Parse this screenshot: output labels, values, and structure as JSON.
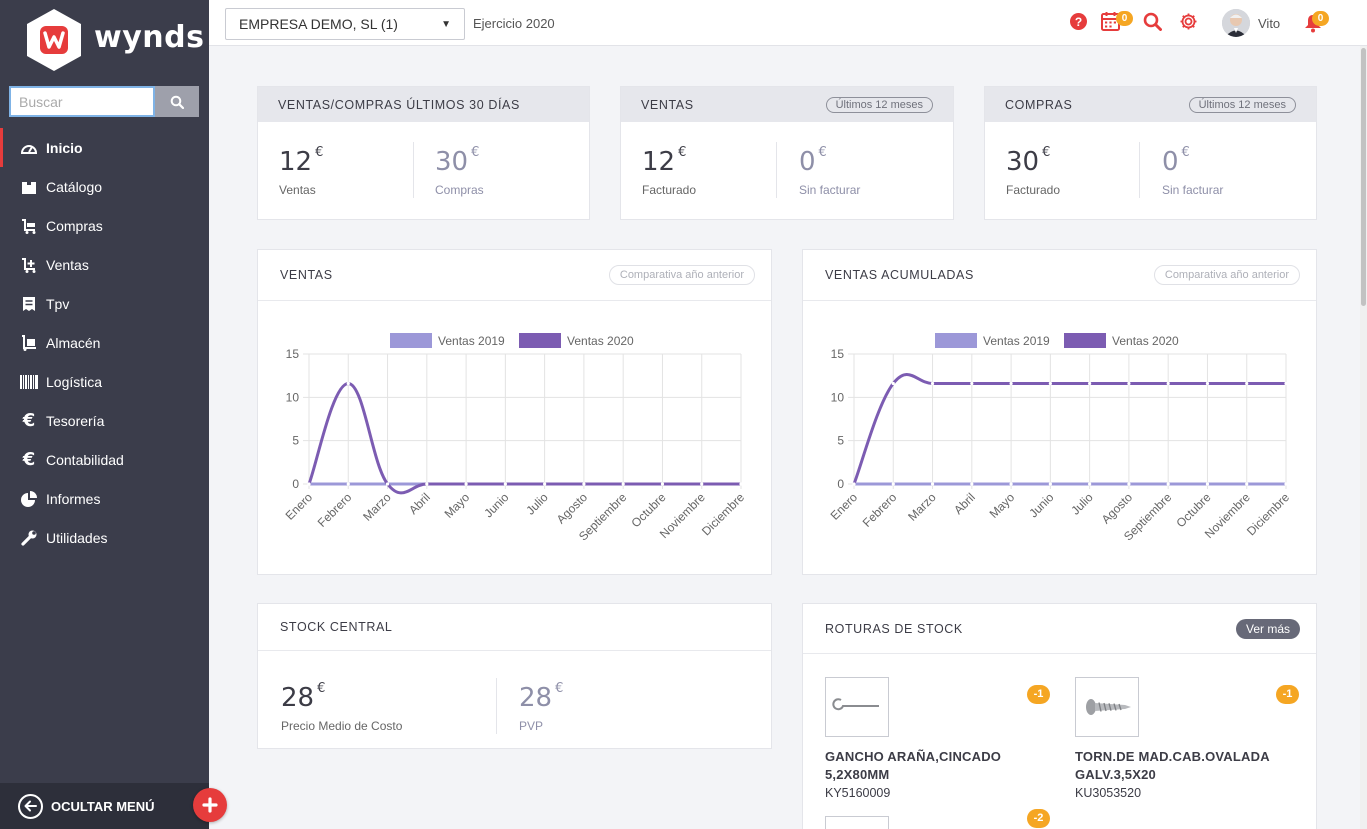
{
  "app": {
    "logo_text": "wynds",
    "brand_color": "#e63c3c"
  },
  "sidebar": {
    "search_placeholder": "Buscar",
    "items": [
      {
        "label": "Inicio",
        "icon": "dashboard-icon",
        "active": true
      },
      {
        "label": "Catálogo",
        "icon": "box-icon"
      },
      {
        "label": "Compras",
        "icon": "cart-icon"
      },
      {
        "label": "Ventas",
        "icon": "cart-plus-icon"
      },
      {
        "label": "Tpv",
        "icon": "receipt-icon"
      },
      {
        "label": "Almacén",
        "icon": "dolly-icon"
      },
      {
        "label": "Logística",
        "icon": "barcode-icon"
      },
      {
        "label": "Tesorería",
        "icon": "euro-icon"
      },
      {
        "label": "Contabilidad",
        "icon": "euro-icon"
      },
      {
        "label": "Informes",
        "icon": "pie-chart-icon"
      },
      {
        "label": "Utilidades",
        "icon": "wrench-icon"
      }
    ],
    "hide_menu_label": "OCULTAR MENÚ"
  },
  "topbar": {
    "company": "EMPRESA DEMO, SL (1)",
    "exercise": "Ejercicio 2020",
    "calendar_count": "0",
    "notifications_count": "0",
    "user_name": "Vito"
  },
  "kpis": {
    "last30": {
      "title": "VENTAS/COMPRAS ÚLTIMOS 30 DÍAS",
      "a_value": "12",
      "a_label": "Ventas",
      "b_value": "30",
      "b_label": "Compras",
      "currency": "€"
    },
    "ventas": {
      "title": "VENTAS",
      "pill": "Últimos 12 meses",
      "a_value": "12",
      "a_label": "Facturado",
      "b_value": "0",
      "b_label": "Sin facturar",
      "currency": "€"
    },
    "compras": {
      "title": "COMPRAS",
      "pill": "Últimos 12 meses",
      "a_value": "30",
      "a_label": "Facturado",
      "b_value": "0",
      "b_label": "Sin facturar",
      "currency": "€"
    }
  },
  "charts_text": {
    "ventas_title": "VENTAS",
    "acum_title": "VENTAS ACUMULADAS",
    "compare_pill": "Comparativa año anterior"
  },
  "chart_data": [
    {
      "type": "line",
      "categories": [
        "Enero",
        "Febrero",
        "Marzo",
        "Abril",
        "Mayo",
        "Junio",
        "Julio",
        "Agosto",
        "Septiembre",
        "Octubre",
        "Noviembre",
        "Diciembre"
      ],
      "series": [
        {
          "name": "Ventas 2019",
          "color": "#9c98d8",
          "values": [
            0,
            0,
            0,
            0,
            0,
            0,
            0,
            0,
            0,
            0,
            0,
            0
          ]
        },
        {
          "name": "Ventas 2020",
          "color": "#7c5cb2",
          "values": [
            0,
            11.6,
            0,
            0,
            0,
            0,
            0,
            0,
            0,
            0,
            0,
            0
          ]
        }
      ],
      "ylim": [
        0,
        15
      ],
      "yticks": [
        0,
        5,
        10,
        15
      ],
      "grid": true,
      "legend": "top"
    },
    {
      "type": "line",
      "categories": [
        "Enero",
        "Febrero",
        "Marzo",
        "Abril",
        "Mayo",
        "Junio",
        "Julio",
        "Agosto",
        "Septiembre",
        "Octubre",
        "Noviembre",
        "Diciembre"
      ],
      "series": [
        {
          "name": "Ventas 2019",
          "color": "#9c98d8",
          "values": [
            0,
            0,
            0,
            0,
            0,
            0,
            0,
            0,
            0,
            0,
            0,
            0
          ]
        },
        {
          "name": "Ventas 2020",
          "color": "#7c5cb2",
          "values": [
            0,
            11.6,
            11.6,
            11.6,
            11.6,
            11.6,
            11.6,
            11.6,
            11.6,
            11.6,
            11.6,
            11.6
          ]
        }
      ],
      "ylim": [
        0,
        15
      ],
      "yticks": [
        0,
        5,
        10,
        15
      ],
      "grid": true,
      "legend": "top"
    }
  ],
  "stock_central": {
    "title": "STOCK CENTRAL",
    "a_value": "28",
    "a_label": "Precio Medio de Costo",
    "b_value": "28",
    "b_label": "PVP",
    "currency": "€"
  },
  "roturas": {
    "title": "ROTURAS DE STOCK",
    "more_label": "Ver más",
    "items": [
      {
        "name_line1": "GANCHO ARAÑA,CINCADO",
        "name_line2": "5,2X80MM",
        "code": "KY5160009",
        "badge": "-1",
        "icon": "hook-icon"
      },
      {
        "name_line1": "TORN.DE MAD.CAB.OVALADA",
        "name_line2": "GALV.3,5X20",
        "code": "KU3053520",
        "badge": "-1",
        "icon": "screw-icon"
      },
      {
        "badge": "-2",
        "icon": "bolt-icon"
      }
    ]
  }
}
